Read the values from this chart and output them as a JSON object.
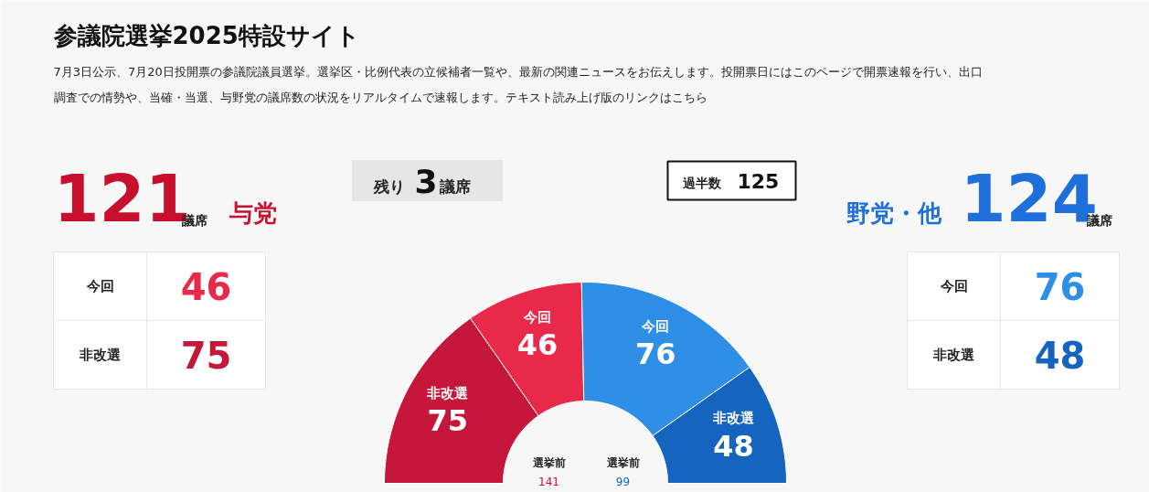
{
  "chart_data": {
    "type": "donut",
    "title": "参議院選挙2025特設サイト",
    "subtitle": "7月3日公示、7月20日投開票の参議院議員選挙。選挙区・比例代表の立候補者一覧や、最新の関連ニュースをお伝えします。投開票日にはこのページで開票速報を行い、出口調査での情勢や、当確・当選、与野党の議席数の状況をリアルタイムで速報します。テキスト読み上げ版のリンクはこちら",
    "categories": [
      "非改選",
      "今回",
      "今回",
      "非改選"
    ],
    "values": [
      75,
      46,
      76,
      48
    ],
    "colors": [
      "#c4173a",
      "#e8294a",
      "#2f8ee6",
      "#1565c0"
    ],
    "data_labels": true,
    "annotations": [
      "121",
      "議席",
      "与党",
      "残り",
      "3",
      "議席",
      "過半数",
      "125",
      "野党・他",
      "124",
      "議席",
      "選挙前",
      "141",
      "選挙前",
      "99",
      "46",
      "75",
      "76",
      "48"
    ]
  }
}
